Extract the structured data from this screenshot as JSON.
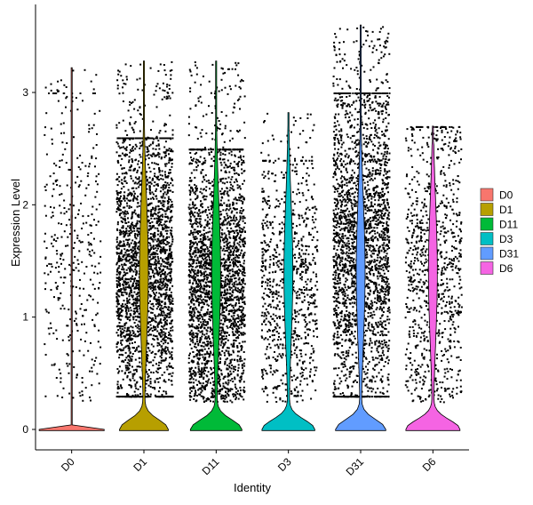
{
  "chart_data": {
    "type": "violin",
    "title": "",
    "xlabel": "Identity",
    "ylabel": "Expression Level",
    "ylim": [
      -0.15,
      3.65
    ],
    "yticks": [
      0,
      1,
      2,
      3
    ],
    "categories": [
      "D0",
      "D1",
      "D11",
      "D3",
      "D31",
      "D6"
    ],
    "legend": {
      "position": "right",
      "entries": [
        "D0",
        "D1",
        "D11",
        "D3",
        "D31",
        "D6"
      ]
    },
    "series": [
      {
        "name": "D0",
        "color": "#F8766D",
        "max": 3.22,
        "point_density": "sparse",
        "point_range": [
          0.3,
          2.8
        ],
        "zero_fraction": 0.98
      },
      {
        "name": "D1",
        "color": "#B79F00",
        "max": 3.28,
        "point_density": "dense",
        "point_range": [
          0.4,
          2.4
        ],
        "zero_fraction": 0.35
      },
      {
        "name": "D11",
        "color": "#00BA38",
        "max": 3.28,
        "point_density": "dense",
        "point_range": [
          0.3,
          2.3
        ],
        "zero_fraction": 0.45
      },
      {
        "name": "D3",
        "color": "#00BFC4",
        "max": 2.82,
        "point_density": "medium",
        "point_range": [
          0.3,
          2.2
        ],
        "zero_fraction": 0.5
      },
      {
        "name": "D31",
        "color": "#619CFF",
        "max": 3.6,
        "point_density": "dense",
        "point_range": [
          0.4,
          2.8
        ],
        "zero_fraction": 0.4
      },
      {
        "name": "D6",
        "color": "#F564E3",
        "max": 2.7,
        "point_density": "medium",
        "point_range": [
          0.3,
          2.5
        ],
        "zero_fraction": 0.55
      }
    ]
  }
}
